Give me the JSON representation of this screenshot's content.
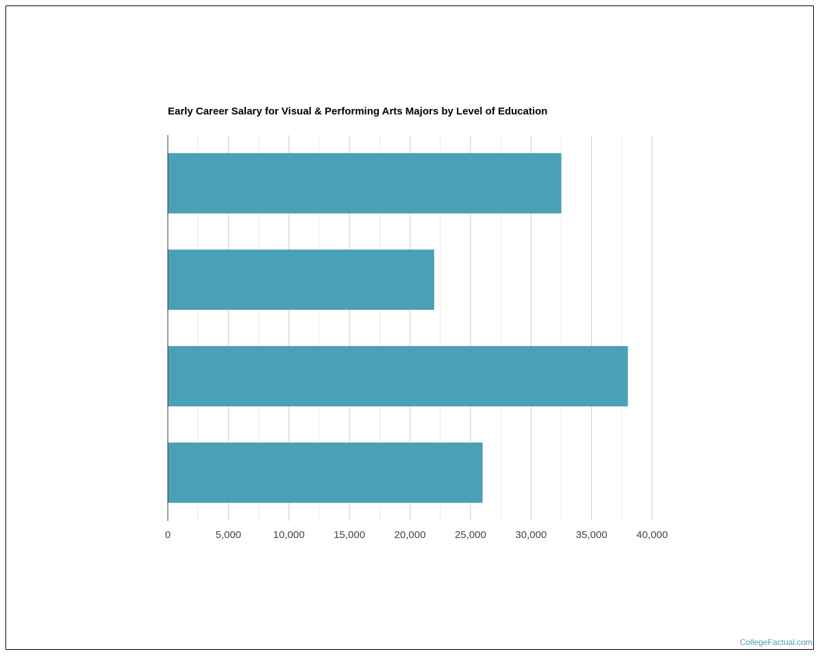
{
  "chart_data": {
    "type": "bar",
    "orientation": "horizontal",
    "title": "Early Career Salary for Visual & Performing Arts Majors by Level of Education",
    "categories": [
      "",
      "",
      "",
      ""
    ],
    "values": [
      32500,
      22000,
      38000,
      26000
    ],
    "xlim": [
      0,
      40000
    ],
    "xticks": [
      0,
      5000,
      10000,
      15000,
      20000,
      25000,
      30000,
      35000,
      40000
    ],
    "xtick_labels": [
      "0",
      "5,000",
      "10,000",
      "15,000",
      "20,000",
      "25,000",
      "30,000",
      "35,000",
      "40,000"
    ],
    "xlabel": "",
    "ylabel": "",
    "grid": true,
    "bar_color": "#4aa0b4"
  },
  "credit": "CollegeFactual.com"
}
